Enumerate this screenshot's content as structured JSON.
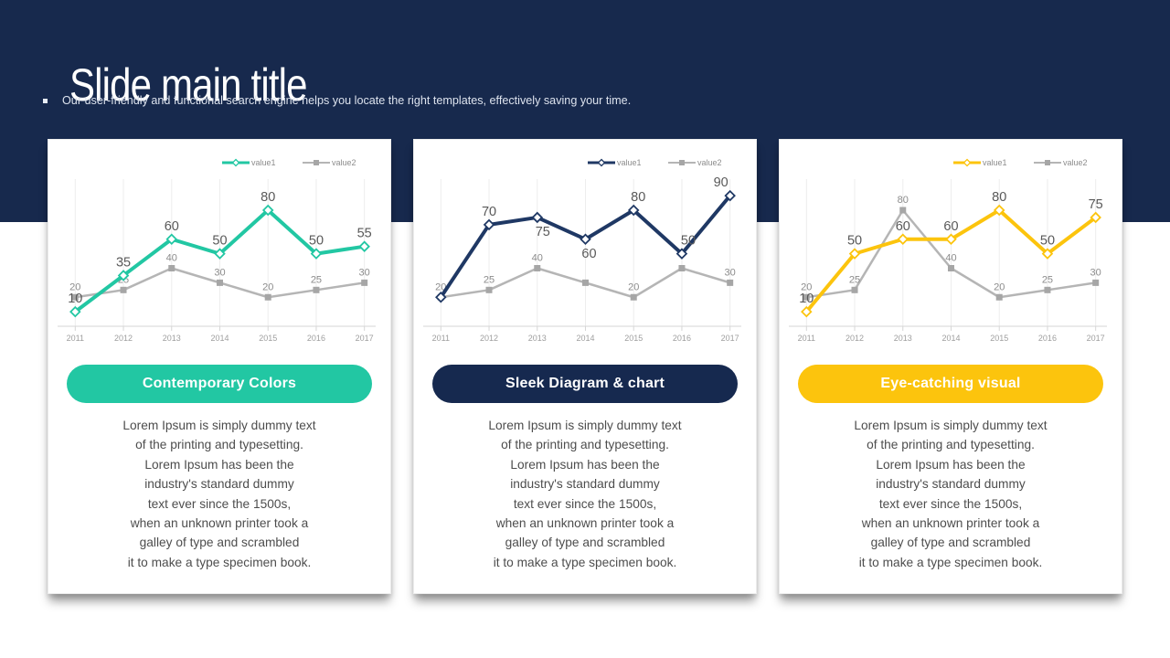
{
  "slide": {
    "title": "Slide main title",
    "bullet_text": "Our user-friendly and functional search engine helps you locate the right templates, effectively saving your time."
  },
  "colors": {
    "header_bg": "#17294D",
    "card_bg": "#FFFFFF",
    "accent_teal": "#22C7A3",
    "accent_navy": "#1F3864",
    "accent_yellow": "#FCC40D",
    "series_gray_line": "#B5B5B5",
    "series_gray_marker": "#A6A6A6",
    "value1_label": "#595959",
    "value2_label": "#8C8C8C",
    "axis_line": "#D6D6D6",
    "gridline": "#EDEDED",
    "tick_label": "#9E9E9E",
    "legend_text": "#8C8C8C",
    "body_text": "#4D4D4D"
  },
  "cards": [
    {
      "pill_label": "Contemporary Colors",
      "pill_color": "#22C7A3",
      "body_lines": "Lorem Ipsum is simply dummy text\nof the printing and typesetting.\nLorem Ipsum has been the\nindustry's standard dummy\ntext ever since the 1500s,\nwhen an unknown printer took a\ngalley of type and scrambled\nit to make a type specimen book."
    },
    {
      "pill_label": "Sleek Diagram & chart",
      "pill_color": "#16294F",
      "body_lines": "Lorem Ipsum is simply dummy text\nof the printing and typesetting.\nLorem Ipsum has been the\nindustry's standard dummy\ntext ever since the 1500s,\nwhen an unknown printer took a\ngalley of type and scrambled\nit to make a type specimen book."
    },
    {
      "pill_label": "Eye-catching visual",
      "pill_color": "#FCC40D",
      "body_lines": "Lorem Ipsum is simply dummy text\nof the printing and typesetting.\nLorem Ipsum has been the\nindustry's standard dummy\ntext ever since the 1500s,\nwhen an unknown printer took a\ngalley of type and scrambled\nit to make a type specimen book."
    }
  ],
  "chart_data": [
    {
      "type": "line",
      "title": "Contemporary Colors",
      "x": [
        "2011",
        "2012",
        "2013",
        "2014",
        "2015",
        "2016",
        "2017"
      ],
      "xlabel": "",
      "ylabel": "",
      "ylim": [
        0,
        100
      ],
      "grid": "vertical",
      "legend": {
        "entries": [
          "value1",
          "value2"
        ],
        "position": "top-right"
      },
      "series": [
        {
          "name": "value1",
          "color": "#22C7A3",
          "marker": "diamond",
          "values": [
            10,
            35,
            60,
            50,
            80,
            50,
            55
          ],
          "labels": [
            "10",
            "35",
            "60",
            "50",
            "80",
            "50",
            "55"
          ],
          "label_side": [
            "above",
            "above",
            "above",
            "above",
            "above",
            "above",
            "above"
          ],
          "label_dx": [
            0,
            0,
            0,
            0,
            0,
            0,
            0
          ]
        },
        {
          "name": "value2",
          "color": "#B5B5B5",
          "marker": "square",
          "values": [
            20,
            25,
            40,
            30,
            20,
            25,
            30
          ],
          "labels": [
            "20",
            "25",
            "40",
            "30",
            "20",
            "25",
            "30"
          ],
          "label_side": [
            "above",
            "above",
            "above",
            "above",
            "above",
            "above",
            "above"
          ],
          "label_dx": [
            0,
            0,
            0,
            0,
            0,
            0,
            0
          ]
        }
      ]
    },
    {
      "type": "line",
      "title": "Sleek Diagram & chart",
      "x": [
        "2011",
        "2012",
        "2013",
        "2014",
        "2015",
        "2016",
        "2017"
      ],
      "xlabel": "",
      "ylabel": "",
      "ylim": [
        0,
        100
      ],
      "grid": "vertical",
      "legend": {
        "entries": [
          "value1",
          "value2"
        ],
        "position": "top-right"
      },
      "series": [
        {
          "name": "value1",
          "color": "#1F3864",
          "marker": "diamond",
          "values": [
            20,
            70,
            75,
            60,
            80,
            50,
            90
          ],
          "labels": [
            null,
            "70",
            "75",
            "60",
            "80",
            "50",
            "90"
          ],
          "label_side": [
            "above",
            "above",
            "below",
            "below",
            "above",
            "above",
            "above"
          ],
          "label_dx": [
            0,
            0,
            6,
            4,
            5,
            7,
            -10
          ]
        },
        {
          "name": "value2",
          "color": "#B5B5B5",
          "marker": "square",
          "values": [
            20,
            25,
            40,
            30,
            20,
            40,
            30
          ],
          "labels": [
            "20",
            "25",
            "40",
            null,
            "20",
            null,
            "30"
          ],
          "label_side": [
            "above",
            "above",
            "above",
            "above",
            "above",
            "above",
            "above"
          ],
          "label_dx": [
            0,
            0,
            0,
            0,
            0,
            0,
            0
          ]
        }
      ]
    },
    {
      "type": "line",
      "title": "Eye-catching visual",
      "x": [
        "2011",
        "2012",
        "2013",
        "2014",
        "2015",
        "2016",
        "2017"
      ],
      "xlabel": "",
      "ylabel": "",
      "ylim": [
        0,
        100
      ],
      "grid": "vertical",
      "legend": {
        "entries": [
          "value1",
          "value2"
        ],
        "position": "top-right"
      },
      "series": [
        {
          "name": "value1",
          "color": "#FCC40D",
          "marker": "diamond",
          "values": [
            10,
            50,
            60,
            60,
            80,
            50,
            75
          ],
          "labels": [
            "10",
            "50",
            "60",
            "60",
            "80",
            "50",
            "75"
          ],
          "label_side": [
            "above",
            "above",
            "above",
            "above",
            "above",
            "above",
            "above"
          ],
          "label_dx": [
            0,
            0,
            0,
            0,
            0,
            0,
            0
          ]
        },
        {
          "name": "value2",
          "color": "#B5B5B5",
          "marker": "square",
          "values": [
            20,
            25,
            80,
            40,
            20,
            25,
            30
          ],
          "labels": [
            "20",
            "25",
            "80",
            "40",
            "20",
            "25",
            "30"
          ],
          "label_side": [
            "above",
            "above",
            "above",
            "above",
            "above",
            "above",
            "above"
          ],
          "label_dx": [
            0,
            0,
            0,
            0,
            0,
            0,
            0
          ]
        }
      ]
    }
  ]
}
